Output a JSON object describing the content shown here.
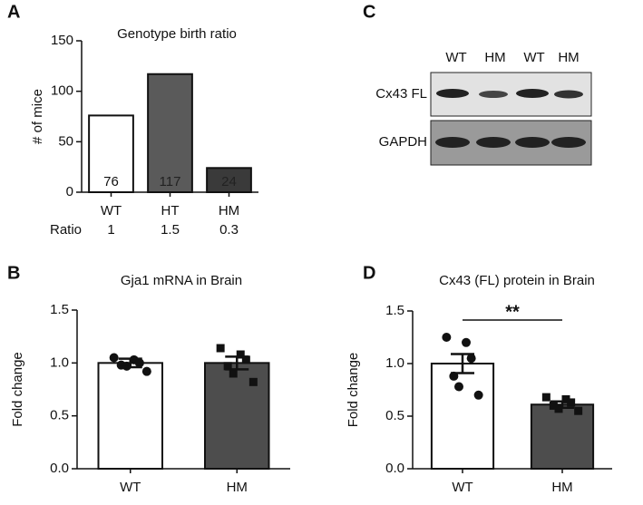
{
  "chart_data": [
    {
      "type": "bar",
      "panel_label": "A",
      "title": "Genotype birth ratio",
      "y_label": "# of mice",
      "categories": [
        "WT",
        "HT",
        "HM"
      ],
      "values": [
        76,
        117,
        24
      ],
      "colors": [
        "#ffffff",
        "#5a5a5a",
        "#3a3a3a"
      ],
      "ylim": [
        0,
        150
      ],
      "yticks": [
        0,
        50,
        100,
        150
      ],
      "row_label": "Ratio",
      "row_values": [
        1,
        1.5,
        0.3
      ]
    },
    {
      "type": "bar",
      "panel_label": "B",
      "title": "Gja1 mRNA in Brain",
      "y_label": "Fold change",
      "categories": [
        "WT",
        "HM"
      ],
      "values": [
        1.0,
        1.0
      ],
      "errors": [
        0.04,
        0.06
      ],
      "points": [
        [
          1.05,
          1.03,
          1.0,
          0.98,
          0.97,
          0.92
        ],
        [
          1.14,
          1.08,
          1.03,
          0.97,
          0.9,
          0.82
        ]
      ],
      "colors": [
        "#ffffff",
        "#4d4d4d"
      ],
      "ylim": [
        0,
        1.5
      ],
      "yticks": [
        {
          "value": 0,
          "label": "0.0"
        },
        {
          "value": 0.5,
          "label": "0.5"
        },
        {
          "value": 1,
          "label": "1.0"
        },
        {
          "value": 1.5,
          "label": "1.5"
        }
      ]
    },
    {
      "type": "bar",
      "panel_label": "D",
      "title": "Cx43 (FL) protein in Brain",
      "y_label": "Fold change",
      "categories": [
        "WT",
        "HM"
      ],
      "values": [
        1.0,
        0.61
      ],
      "errors": [
        0.09,
        0.03
      ],
      "points": [
        [
          1.25,
          1.2,
          1.05,
          0.88,
          0.78,
          0.7
        ],
        [
          0.68,
          0.66,
          0.63,
          0.6,
          0.57,
          0.55
        ]
      ],
      "colors": [
        "#ffffff",
        "#4d4d4d"
      ],
      "annotation": "**",
      "ylim": [
        0,
        1.5
      ],
      "yticks": [
        {
          "value": 0,
          "label": "0.0"
        },
        {
          "value": 0.5,
          "label": "0.5"
        },
        {
          "value": 1,
          "label": "1.0"
        },
        {
          "value": 1.5,
          "label": "1.5"
        }
      ]
    }
  ],
  "blot": {
    "panel_label": "C",
    "lanes": [
      "WT",
      "HM",
      "WT",
      "HM"
    ],
    "rows": [
      "Cx43 FL",
      "GAPDH"
    ]
  }
}
